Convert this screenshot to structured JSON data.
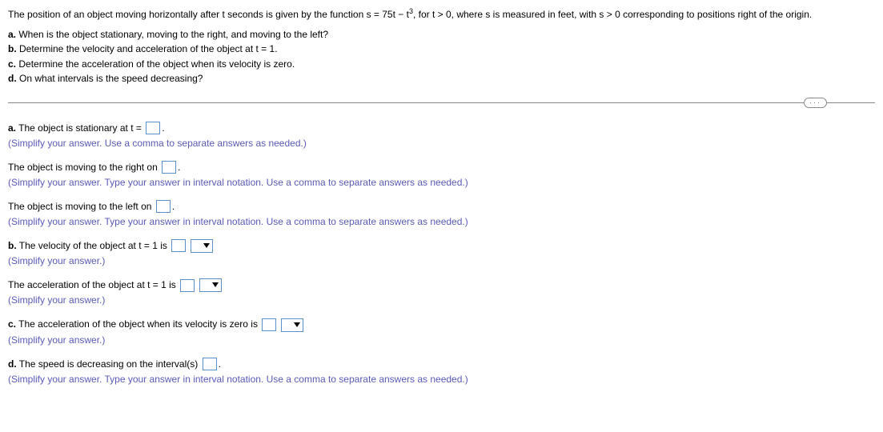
{
  "problem": {
    "intro_pre": "The position of an object moving horizontally after t seconds is given by the function s = 75t − t",
    "sup": "3",
    "intro_post": ", for t > 0, where s is measured in feet, with s > 0 corresponding to positions right of the origin.",
    "parts": {
      "a_label": "a.",
      "a_text": " When is the object stationary, moving to the right, and moving to the left?",
      "b_label": "b.",
      "b_text": " Determine the velocity and acceleration of the object at t = 1.",
      "c_label": "c.",
      "c_text": " Determine the acceleration of the object when its velocity is zero.",
      "d_label": "d.",
      "d_text": " On what intervals is the speed decreasing?"
    }
  },
  "ellipsis": "···",
  "answers": {
    "a1": {
      "label": "a.",
      "text_pre": " The object is stationary at t = ",
      "text_post": ".",
      "hint": "(Simplify your answer. Use a comma to separate answers as needed.)"
    },
    "a2": {
      "text_pre": "The object is moving to the right on ",
      "text_post": ".",
      "hint": "(Simplify your answer. Type your answer in interval notation. Use a comma to separate answers as needed.)"
    },
    "a3": {
      "text_pre": "The object is moving to the left on ",
      "text_post": ".",
      "hint": "(Simplify your answer. Type your answer in interval notation. Use a comma to separate answers as needed.)"
    },
    "b1": {
      "label": "b.",
      "text_pre": " The velocity of the object at t = 1 is ",
      "hint": "(Simplify your answer.)"
    },
    "b2": {
      "text_pre": "The acceleration of the object at t = 1 is ",
      "hint": "(Simplify your answer.)"
    },
    "c1": {
      "label": "c.",
      "text_pre": " The acceleration of the object when its velocity is zero is ",
      "hint": "(Simplify your answer.)"
    },
    "d1": {
      "label": "d.",
      "text_pre": " The speed is decreasing on the interval(s) ",
      "text_post": ".",
      "hint": "(Simplify your answer. Type your answer in interval notation. Use a comma to separate answers as needed.)"
    }
  },
  "colors": {
    "hint": "#5a5ab5",
    "box_border": "#5a8fc9",
    "divider": "#888888",
    "text": "#000000",
    "background": "#ffffff"
  }
}
